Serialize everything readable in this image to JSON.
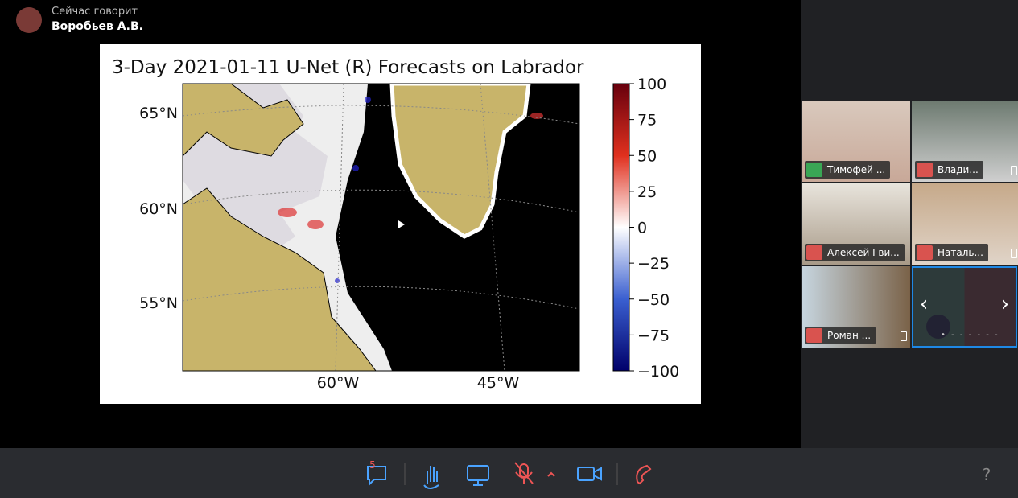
{
  "speaker": {
    "caption": "Сейчас говорит",
    "name": "Воробьев А.В."
  },
  "shared_screen": {
    "title": "3-Day 2021-01-11 U-Net (R) Forecasts on Labrador",
    "lat_labels": [
      "65°N",
      "60°N",
      "55°N"
    ],
    "lon_labels": [
      "60°W",
      "45°W"
    ],
    "colorbar_ticks": [
      "100",
      "75",
      "50",
      "25",
      "0",
      "−25",
      "−50",
      "−75",
      "−100"
    ]
  },
  "participants": [
    {
      "name": "Тимофей ..."
    },
    {
      "name": "Влади..."
    },
    {
      "name": "Алексей Гви..."
    },
    {
      "name": "Наталь..."
    },
    {
      "name": "Роман ..."
    }
  ],
  "toolbar": {
    "chat_badge": "5",
    "help": "?"
  }
}
